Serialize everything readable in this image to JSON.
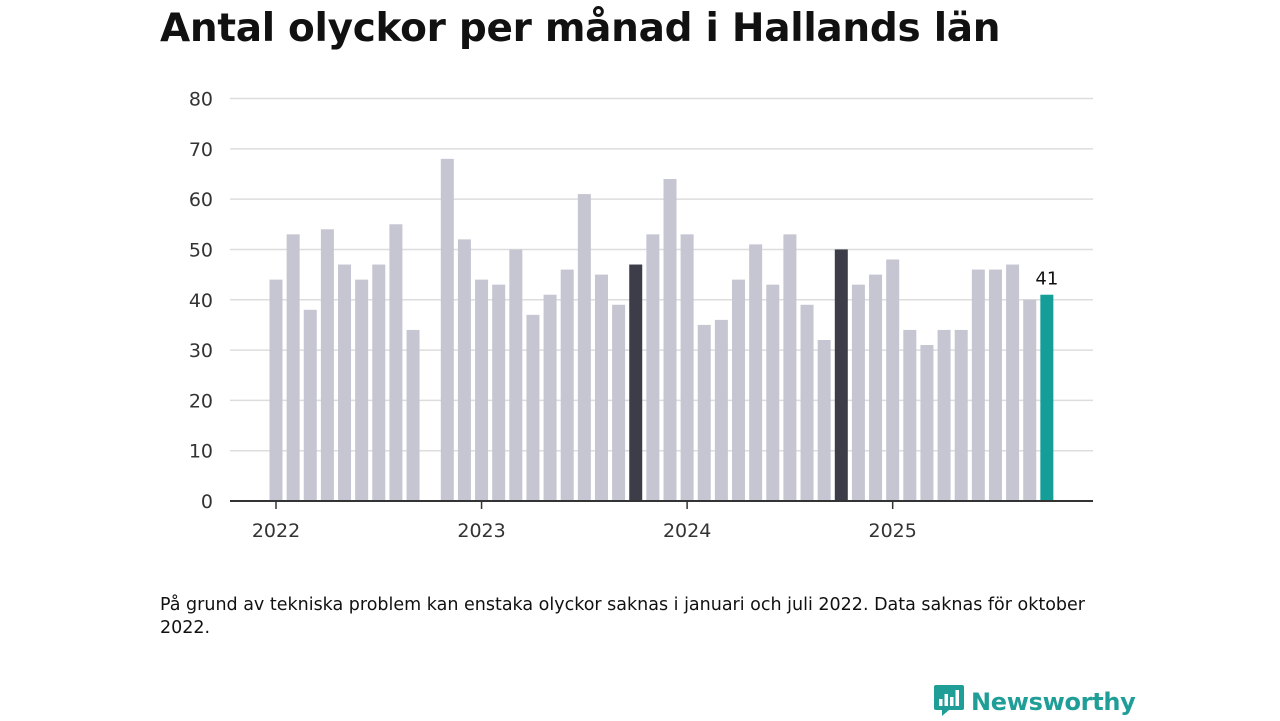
{
  "header": {
    "title": "Antal olyckor per månad i Hallands län"
  },
  "note": "På grund av tekniska problem kan enstaka olyckor saknas i januari och juli 2022. Data saknas för oktober 2022.",
  "brand": {
    "name": "Newsworthy",
    "icon": "newsworthy-logo-icon",
    "color": "#1f9e98"
  },
  "chart_data": {
    "type": "bar",
    "title": "Antal olyckor per månad i Hallands län",
    "xlabel": "",
    "ylabel": "",
    "ylim": [
      0,
      80
    ],
    "yticks": [
      0,
      10,
      20,
      30,
      40,
      50,
      60,
      70,
      80
    ],
    "grid": true,
    "x_tick_labels": [
      "2022",
      "2023",
      "2024",
      "2025"
    ],
    "categories": [
      "2022-01",
      "2022-02",
      "2022-03",
      "2022-04",
      "2022-05",
      "2022-06",
      "2022-07",
      "2022-08",
      "2022-09",
      "2022-10",
      "2022-11",
      "2022-12",
      "2023-01",
      "2023-02",
      "2023-03",
      "2023-04",
      "2023-05",
      "2023-06",
      "2023-07",
      "2023-08",
      "2023-09",
      "2023-10",
      "2023-11",
      "2023-12",
      "2024-01",
      "2024-02",
      "2024-03",
      "2024-04",
      "2024-05",
      "2024-06",
      "2024-07",
      "2024-08",
      "2024-09",
      "2024-10",
      "2024-11",
      "2024-12",
      "2025-01",
      "2025-02",
      "2025-03",
      "2025-04",
      "2025-05",
      "2025-06",
      "2025-07",
      "2025-08",
      "2025-09",
      "2025-10"
    ],
    "values": [
      44,
      53,
      38,
      54,
      47,
      44,
      47,
      55,
      34,
      null,
      68,
      52,
      44,
      43,
      50,
      37,
      41,
      46,
      61,
      45,
      39,
      47,
      53,
      64,
      53,
      35,
      36,
      44,
      51,
      43,
      53,
      39,
      32,
      50,
      43,
      45,
      48,
      34,
      31,
      34,
      34,
      46,
      46,
      47,
      40,
      41
    ],
    "highlight_dark": [
      "2023-10",
      "2024-10"
    ],
    "highlight_current": "2025-10",
    "data_labels": [
      {
        "category": "2025-10",
        "text": "41"
      }
    ],
    "colors": {
      "default": "#c6c5d2",
      "dark": "#3c3d49",
      "current": "#159e98",
      "grid": "#dddddd",
      "axis": "#333333"
    }
  }
}
